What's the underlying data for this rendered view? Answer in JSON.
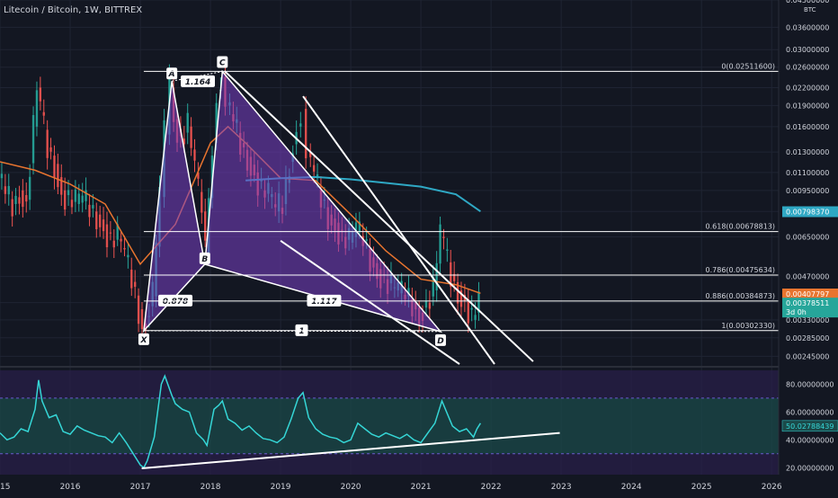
{
  "header": {
    "title": "Litecoin / Bitcoin, 1W, BITTREX"
  },
  "colors": {
    "bg": "#131722",
    "grid": "#1f2433",
    "up": "#26a69a",
    "down": "#ef5350",
    "ma_orange": "#e8742f",
    "ma_blue": "#2fa8c4",
    "rsi_line": "#35d6d6",
    "pattern_fill": "#7a3fc4",
    "axis_text": "#d1d4dc",
    "white": "#ffffff",
    "last_price_bg": "#26a69a",
    "ma_orange_label_bg": "#e8742f",
    "ma_blue_label_bg": "#2fa8c4"
  },
  "chart_data": [
    {
      "type": "candlestick",
      "title": "Litecoin / Bitcoin, 1W, BITTREX",
      "yunit": "BTC",
      "yscale": "log",
      "ylim": [
        0.0023,
        0.045
      ],
      "xlim": [
        2015.0,
        2026.1
      ],
      "price_ticks": [
        "0.04500000",
        "0.03600000",
        "0.03000000",
        "0.02600000",
        "0.02200000",
        "0.01900000",
        "0.01600000",
        "0.01300000",
        "0.01100000",
        "0.00950000",
        "0.00800000",
        "0.00650000",
        "0.00470000",
        "0.00380000",
        "0.00330000",
        "0.00285000",
        "0.00245000"
      ],
      "x_ticks": [
        "2015",
        "2016",
        "2017",
        "2018",
        "2019",
        "2020",
        "2021",
        "2022",
        "2023",
        "2024",
        "2025",
        "2026"
      ],
      "price_labels": [
        {
          "name": "ma_blue",
          "value": "0.00798370",
          "color": "#2fa8c4"
        },
        {
          "name": "ma_orange",
          "value": "0.00407797",
          "color": "#e8742f"
        },
        {
          "name": "last",
          "value": "0.00378511",
          "sub": "3d 0h",
          "color": "#26a69a"
        }
      ],
      "fib_levels": [
        {
          "label": "0(0.02511600)",
          "value": 0.025116
        },
        {
          "label": "0.618(0.00678813)",
          "value": 0.00678813
        },
        {
          "label": "0.786(0.00475634)",
          "value": 0.00475634
        },
        {
          "label": "0.886(0.00384873)",
          "value": 0.00384873
        },
        {
          "label": "1(0.00302330)",
          "value": 0.0030233
        }
      ],
      "harmonic_pattern": {
        "points": [
          {
            "label": "X",
            "t": 2017.05,
            "v": 0.00302
          },
          {
            "label": "A",
            "t": 2017.45,
            "v": 0.0232
          },
          {
            "label": "B",
            "t": 2017.92,
            "v": 0.0052
          },
          {
            "label": "C",
            "t": 2018.17,
            "v": 0.0251
          },
          {
            "label": "D",
            "t": 2021.28,
            "v": 0.003
          }
        ],
        "ratios": [
          {
            "label": "1.164",
            "t": 2017.82,
            "v": 0.0231
          },
          {
            "label": "0.878",
            "t": 2017.5,
            "v": 0.00385
          },
          {
            "label": "1.117",
            "t": 2019.62,
            "v": 0.00385
          },
          {
            "label": "1",
            "t": 2019.3,
            "v": 0.00302
          }
        ]
      },
      "trendlines": [
        {
          "t1": 2019.32,
          "v1": 0.0205,
          "t2": 2022.05,
          "v2": 0.0023
        },
        {
          "t1": 2019.0,
          "v1": 0.0063,
          "t2": 2021.55,
          "v2": 0.0023
        },
        {
          "t1": 2018.2,
          "v1": 0.0252,
          "t2": 2022.6,
          "v2": 0.00235
        }
      ],
      "close_series": [
        [
          2015.0,
          0.0105
        ],
        [
          2015.1,
          0.0092
        ],
        [
          2015.2,
          0.0085
        ],
        [
          2015.3,
          0.0095
        ],
        [
          2015.4,
          0.0088
        ],
        [
          2015.5,
          0.016
        ],
        [
          2015.55,
          0.022
        ],
        [
          2015.6,
          0.018
        ],
        [
          2015.7,
          0.0135
        ],
        [
          2015.8,
          0.0118
        ],
        [
          2015.9,
          0.0095
        ],
        [
          2016.0,
          0.0088
        ],
        [
          2016.1,
          0.0085
        ],
        [
          2016.2,
          0.0087
        ],
        [
          2016.3,
          0.0082
        ],
        [
          2016.4,
          0.0078
        ],
        [
          2016.5,
          0.0072
        ],
        [
          2016.6,
          0.0063
        ],
        [
          2016.7,
          0.0064
        ],
        [
          2016.8,
          0.0055
        ],
        [
          2016.9,
          0.0045
        ],
        [
          2017.0,
          0.0036
        ],
        [
          2017.05,
          0.0032
        ],
        [
          2017.1,
          0.0034
        ],
        [
          2017.2,
          0.004
        ],
        [
          2017.3,
          0.009
        ],
        [
          2017.38,
          0.015
        ],
        [
          2017.45,
          0.022
        ],
        [
          2017.5,
          0.017
        ],
        [
          2017.6,
          0.0145
        ],
        [
          2017.7,
          0.016
        ],
        [
          2017.8,
          0.011
        ],
        [
          2017.9,
          0.008
        ],
        [
          2017.95,
          0.0057
        ],
        [
          2018.05,
          0.014
        ],
        [
          2018.12,
          0.0215
        ],
        [
          2018.17,
          0.024
        ],
        [
          2018.25,
          0.019
        ],
        [
          2018.35,
          0.0165
        ],
        [
          2018.45,
          0.014
        ],
        [
          2018.55,
          0.0125
        ],
        [
          2018.65,
          0.011
        ],
        [
          2018.75,
          0.0095
        ],
        [
          2018.85,
          0.009
        ],
        [
          2018.95,
          0.008
        ],
        [
          2019.05,
          0.0085
        ],
        [
          2019.15,
          0.012
        ],
        [
          2019.25,
          0.016
        ],
        [
          2019.32,
          0.0185
        ],
        [
          2019.4,
          0.013
        ],
        [
          2019.5,
          0.0105
        ],
        [
          2019.6,
          0.0088
        ],
        [
          2019.7,
          0.0078
        ],
        [
          2019.8,
          0.0073
        ],
        [
          2019.9,
          0.0065
        ],
        [
          2020.0,
          0.0062
        ],
        [
          2020.1,
          0.0068
        ],
        [
          2020.2,
          0.0063
        ],
        [
          2020.3,
          0.0055
        ],
        [
          2020.4,
          0.005
        ],
        [
          2020.5,
          0.0046
        ],
        [
          2020.6,
          0.0043
        ],
        [
          2020.7,
          0.0041
        ],
        [
          2020.8,
          0.004
        ],
        [
          2020.9,
          0.0038
        ],
        [
          2021.0,
          0.0035
        ],
        [
          2021.1,
          0.0038
        ],
        [
          2021.2,
          0.0042
        ],
        [
          2021.3,
          0.0065
        ],
        [
          2021.35,
          0.0058
        ],
        [
          2021.45,
          0.0048
        ],
        [
          2021.55,
          0.0042
        ],
        [
          2021.65,
          0.0039
        ],
        [
          2021.75,
          0.0033
        ],
        [
          2021.8,
          0.0035
        ],
        [
          2021.85,
          0.0038
        ]
      ],
      "series": [
        {
          "name": "ma_orange",
          "values": [
            [
              2015.0,
              0.012
            ],
            [
              2015.5,
              0.0112
            ],
            [
              2016.0,
              0.01
            ],
            [
              2016.5,
              0.0085
            ],
            [
              2017.0,
              0.0052
            ],
            [
              2017.5,
              0.0072
            ],
            [
              2018.0,
              0.014
            ],
            [
              2018.25,
              0.016
            ],
            [
              2018.5,
              0.014
            ],
            [
              2019.0,
              0.0105
            ],
            [
              2019.5,
              0.0103
            ],
            [
              2020.0,
              0.0078
            ],
            [
              2020.5,
              0.0058
            ],
            [
              2021.0,
              0.0046
            ],
            [
              2021.5,
              0.0044
            ],
            [
              2021.85,
              0.0041
            ]
          ]
        },
        {
          "name": "ma_blue",
          "values": [
            [
              2018.5,
              0.0103
            ],
            [
              2019.0,
              0.0105
            ],
            [
              2019.5,
              0.0106
            ],
            [
              2020.0,
              0.0104
            ],
            [
              2020.5,
              0.0101
            ],
            [
              2021.0,
              0.0098
            ],
            [
              2021.5,
              0.0092
            ],
            [
              2021.85,
              0.008
            ]
          ]
        }
      ]
    },
    {
      "type": "line",
      "name": "RSI",
      "ylim": [
        15,
        90
      ],
      "y_ticks": [
        "80.00000000",
        "60.00000000",
        "40.00000000",
        "20.00000000"
      ],
      "bands": [
        70,
        30
      ],
      "current_label": "50.02788439",
      "values": [
        [
          2015.0,
          45
        ],
        [
          2015.1,
          40
        ],
        [
          2015.2,
          42
        ],
        [
          2015.3,
          48
        ],
        [
          2015.4,
          46
        ],
        [
          2015.5,
          62
        ],
        [
          2015.55,
          83
        ],
        [
          2015.6,
          68
        ],
        [
          2015.7,
          56
        ],
        [
          2015.8,
          58
        ],
        [
          2015.9,
          46
        ],
        [
          2016.0,
          44
        ],
        [
          2016.1,
          50
        ],
        [
          2016.2,
          47
        ],
        [
          2016.3,
          45
        ],
        [
          2016.4,
          43
        ],
        [
          2016.5,
          42
        ],
        [
          2016.6,
          38
        ],
        [
          2016.7,
          45
        ],
        [
          2016.8,
          38
        ],
        [
          2016.9,
          30
        ],
        [
          2017.0,
          22
        ],
        [
          2017.05,
          20
        ],
        [
          2017.1,
          25
        ],
        [
          2017.2,
          42
        ],
        [
          2017.3,
          80
        ],
        [
          2017.35,
          86
        ],
        [
          2017.45,
          72
        ],
        [
          2017.5,
          66
        ],
        [
          2017.6,
          62
        ],
        [
          2017.7,
          60
        ],
        [
          2017.8,
          45
        ],
        [
          2017.9,
          40
        ],
        [
          2017.95,
          36
        ],
        [
          2018.05,
          62
        ],
        [
          2018.12,
          65
        ],
        [
          2018.17,
          68
        ],
        [
          2018.25,
          55
        ],
        [
          2018.35,
          52
        ],
        [
          2018.45,
          47
        ],
        [
          2018.55,
          50
        ],
        [
          2018.65,
          45
        ],
        [
          2018.75,
          41
        ],
        [
          2018.85,
          40
        ],
        [
          2018.95,
          38
        ],
        [
          2019.05,
          42
        ],
        [
          2019.15,
          55
        ],
        [
          2019.25,
          70
        ],
        [
          2019.32,
          74
        ],
        [
          2019.4,
          56
        ],
        [
          2019.5,
          48
        ],
        [
          2019.6,
          44
        ],
        [
          2019.7,
          42
        ],
        [
          2019.8,
          41
        ],
        [
          2019.9,
          38
        ],
        [
          2020.0,
          40
        ],
        [
          2020.1,
          52
        ],
        [
          2020.2,
          48
        ],
        [
          2020.3,
          44
        ],
        [
          2020.4,
          42
        ],
        [
          2020.5,
          45
        ],
        [
          2020.6,
          43
        ],
        [
          2020.7,
          41
        ],
        [
          2020.8,
          44
        ],
        [
          2020.9,
          40
        ],
        [
          2021.0,
          38
        ],
        [
          2021.1,
          45
        ],
        [
          2021.2,
          52
        ],
        [
          2021.3,
          68
        ],
        [
          2021.35,
          62
        ],
        [
          2021.45,
          50
        ],
        [
          2021.55,
          46
        ],
        [
          2021.65,
          48
        ],
        [
          2021.75,
          42
        ],
        [
          2021.8,
          48
        ],
        [
          2021.85,
          52
        ]
      ],
      "trendline": {
        "t1": 2017.02,
        "v1": 19.5,
        "t2": 2022.98,
        "v2": 45
      }
    }
  ]
}
